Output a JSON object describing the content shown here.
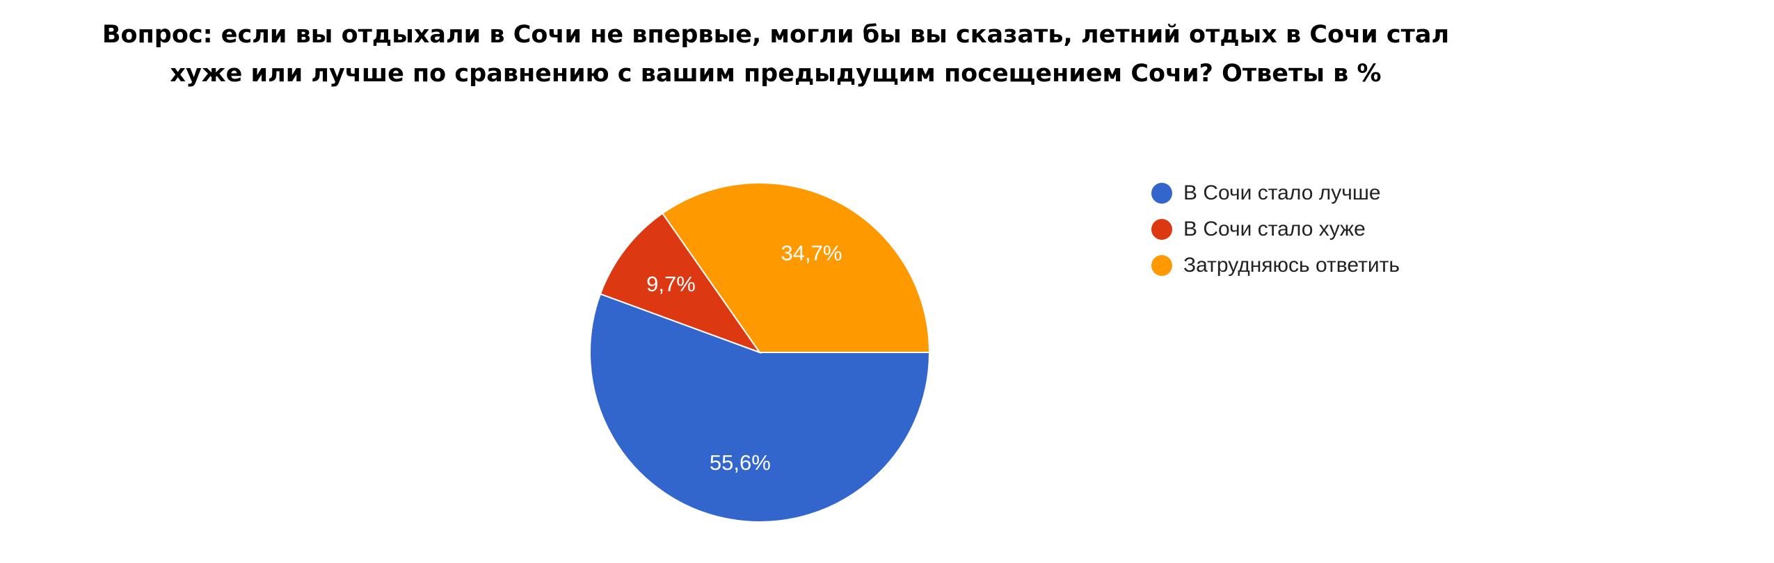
{
  "chart_data": {
    "type": "pie",
    "title": "Вопрос: если вы отдыхали в Сочи не впервые, могли бы вы сказать, летний отдых в Сочи стал хуже или лучше по сравнению с вашим предыдущим посещением Сочи? Ответы в %",
    "title_lines": [
      "Вопрос: если вы отдыхали в Сочи не впервые, могли бы вы сказать, летний отдых в Сочи стал",
      "хуже или лучше по сравнению с вашим предыдущим посещением Сочи? Ответы в %"
    ],
    "slices": [
      {
        "label": "В Сочи стало лучше",
        "value": 55.6,
        "value_label": "55,6%",
        "color": "#3366cc"
      },
      {
        "label": "В Сочи стало хуже",
        "value": 9.7,
        "value_label": "9,7%",
        "color": "#dc3912"
      },
      {
        "label": "Затрудняюсь ответить",
        "value": 34.7,
        "value_label": "34,7%",
        "color": "#ff9900"
      }
    ],
    "legend_position": "right"
  }
}
